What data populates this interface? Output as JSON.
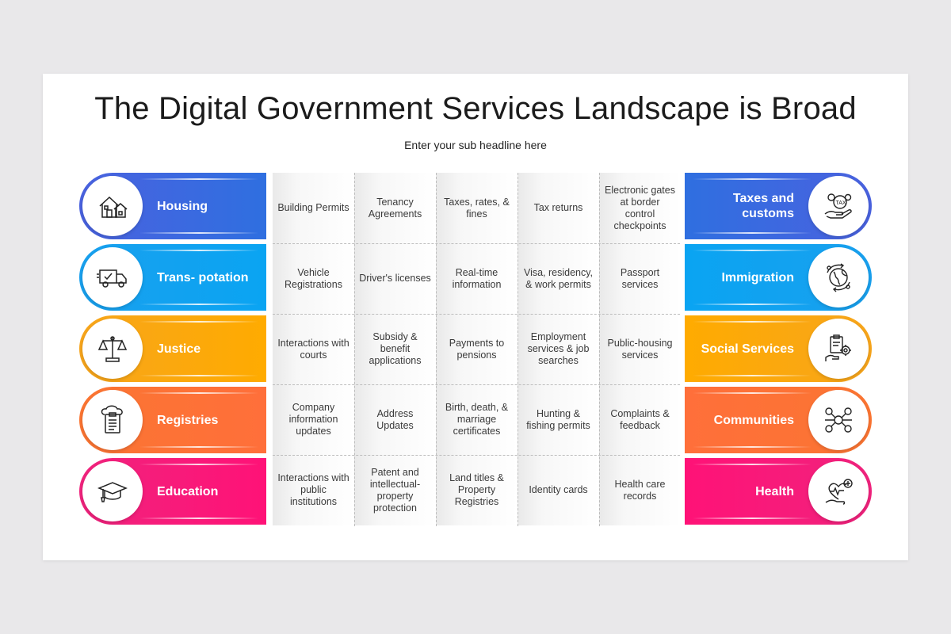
{
  "title": "The Digital Government Services Landscape is Broad",
  "subtitle": "Enter your sub headline here",
  "left_categories": [
    {
      "label": "Housing",
      "icon": "house-icon",
      "color": "#3a68e0"
    },
    {
      "label": "Trans- potation",
      "icon": "truck-icon",
      "color": "#12a2f0"
    },
    {
      "label": "Justice",
      "icon": "scales-icon",
      "color": "#fba812"
    },
    {
      "label": "Registries",
      "icon": "clipboard-icon",
      "color": "#fd7236"
    },
    {
      "label": "Education",
      "icon": "graduation-cap-icon",
      "color": "#f81b7a"
    }
  ],
  "right_categories": [
    {
      "label": "Taxes and customs",
      "icon": "tax-icon",
      "color": "#3a68e0"
    },
    {
      "label": "Immigration",
      "icon": "globe-icon",
      "color": "#12a2f0"
    },
    {
      "label": "Social Services",
      "icon": "social-services-icon",
      "color": "#fba812"
    },
    {
      "label": "Communities",
      "icon": "community-network-icon",
      "color": "#fd7236"
    },
    {
      "label": "Health",
      "icon": "health-hand-icon",
      "color": "#f81b7a"
    }
  ],
  "services": [
    [
      "Building Permits",
      "Tenancy Agreements",
      "Taxes, rates, & fines",
      "Tax returns",
      "Electronic gates at border control checkpoints"
    ],
    [
      "Vehicle Registrations",
      "Driver's licenses",
      "Real-time information",
      "Visa, residency, & work permits",
      "Passport services"
    ],
    [
      "Interactions with courts",
      "Subsidy & benefit applications",
      "Payments to pensions",
      "Employment services & job searches",
      "Public-housing services"
    ],
    [
      "Company information updates",
      "Address Updates",
      "Birth, death, & marriage certificates",
      "Hunting & fishing permits",
      "Complaints & feedback"
    ],
    [
      "Interactions with public institutions",
      "Patent and intellectual-property protection",
      "Land titles & Property Registries",
      "Identity cards",
      "Health care records"
    ]
  ]
}
